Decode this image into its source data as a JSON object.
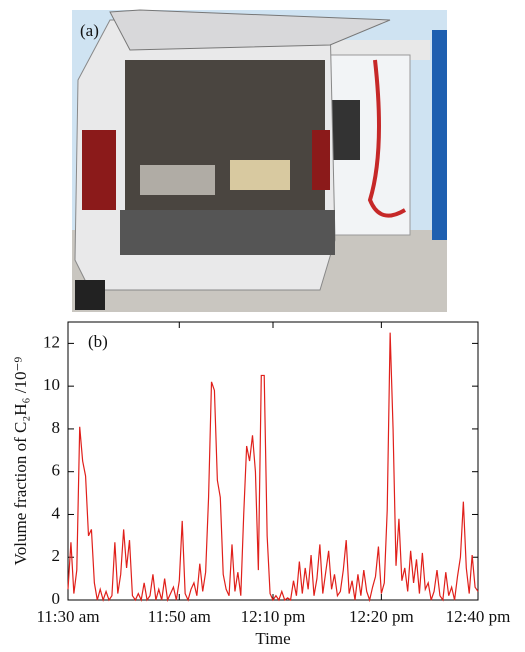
{
  "photo": {
    "label": "(a)"
  },
  "chart_data": {
    "type": "line",
    "panel_label": "(b)",
    "x_label": "Time",
    "y_label": "Volume fraction of C₂H₆ /10⁻⁹",
    "color": "#e0201b",
    "values": [
      0.5,
      2.7,
      0.3,
      1.4,
      8.1,
      6.5,
      5.8,
      3.0,
      3.3,
      0.8,
      0,
      0.5,
      0,
      0.4,
      0,
      0.2,
      2.7,
      0.3,
      1.2,
      3.3,
      1.5,
      2.8,
      0.2,
      0,
      0.3,
      0,
      0.8,
      0,
      0.2,
      1.2,
      0,
      0.5,
      0,
      1.0,
      0,
      0.3,
      0.6,
      0,
      0.9,
      3.7,
      0.3,
      0,
      0.5,
      0.8,
      0.2,
      1.7,
      0.4,
      1.3,
      4.8,
      10.2,
      9.8,
      5.6,
      4.8,
      1.2,
      0.5,
      0.2,
      2.6,
      0.4,
      1.3,
      0.2,
      4.0,
      7.2,
      6.5,
      7.7,
      6.0,
      1.4,
      10.5,
      10.5,
      3.0,
      0.3,
      0,
      0.2,
      0,
      0.4,
      0,
      0.1,
      0,
      0.9,
      0.2,
      1.8,
      0.3,
      1.5,
      0.5,
      2.1,
      0.2,
      1.0,
      2.6,
      0.3,
      1.3,
      2.3,
      0.5,
      1.2,
      0.2,
      0.4,
      1.4,
      2.8,
      0.3,
      0.9,
      0,
      1.2,
      0.2,
      1.4,
      0.4,
      0,
      0.6,
      1.1,
      2.5,
      0.3,
      0.8,
      4.2,
      12.5,
      8.0,
      1.6,
      3.8,
      0.9,
      1.5,
      0.4,
      2.3,
      0.8,
      1.9,
      0.3,
      2.2,
      0.5,
      0.8,
      0,
      0.4,
      1.4,
      0.2,
      0,
      1.3,
      0.2,
      0.6,
      0,
      1.1,
      2.0,
      4.6,
      1.5,
      0.3,
      2.1,
      0.6,
      0.4
    ],
    "xlim": [
      0,
      140
    ],
    "xticks": [
      {
        "value": 0,
        "label": "11:30 am"
      },
      {
        "value": 38,
        "label": "11:50 am"
      },
      {
        "value": 70,
        "label": "12:10 pm"
      },
      {
        "value": 107,
        "label": "12:20 pm"
      },
      {
        "value": 140,
        "label": "12:40 pm"
      }
    ],
    "ylim": [
      0,
      13
    ],
    "yticks": [
      0,
      2,
      4,
      6,
      8,
      10,
      12
    ]
  }
}
